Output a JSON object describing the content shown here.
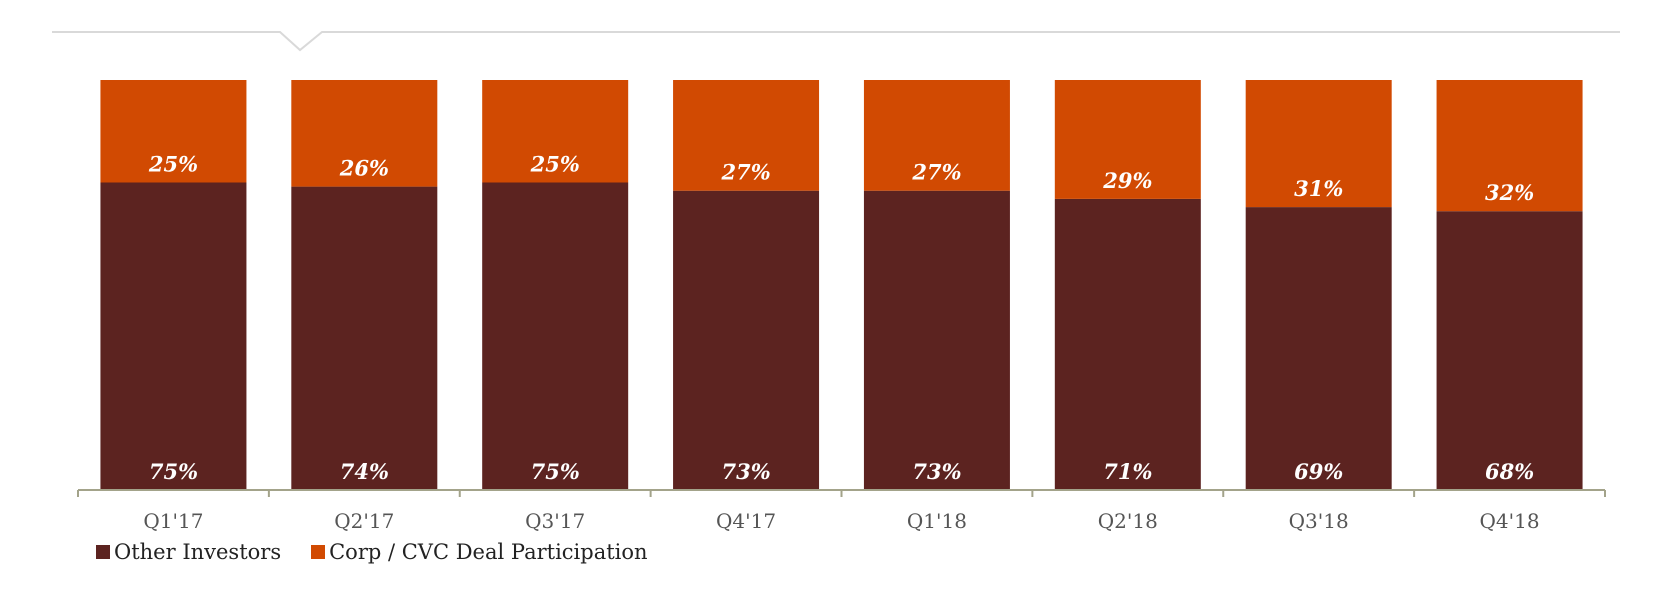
{
  "chart_data": {
    "type": "bar",
    "stacked": true,
    "categories": [
      "Q1'17",
      "Q2'17",
      "Q3'17",
      "Q4'17",
      "Q1'18",
      "Q2'18",
      "Q3'18",
      "Q4'18"
    ],
    "series": [
      {
        "name": "Other Investors",
        "color": "#5c2320",
        "values": [
          75,
          74,
          75,
          73,
          73,
          71,
          69,
          68
        ],
        "labels": [
          "75%",
          "74%",
          "75%",
          "73%",
          "73%",
          "71%",
          "69%",
          "68%"
        ]
      },
      {
        "name": "Corp / CVC Deal Participation",
        "color": "#d14a02",
        "values": [
          25,
          26,
          25,
          27,
          27,
          29,
          31,
          32
        ],
        "labels": [
          "25%",
          "26%",
          "25%",
          "27%",
          "27%",
          "29%",
          "31%",
          "32%"
        ]
      }
    ],
    "ylim": [
      0,
      100
    ],
    "grid": false,
    "legend_position": "bottom-left"
  }
}
